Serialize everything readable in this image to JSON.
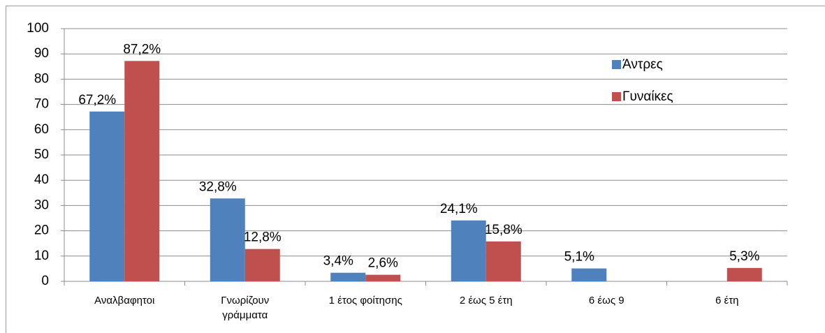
{
  "chart_data": {
    "type": "bar",
    "categories": [
      "Αναλβαφητοι",
      "Γνωρίζουν γράμματα",
      "1 έτος φοίτησης",
      "2 έως 5 έτη",
      "6 έως 9",
      "6 έτη"
    ],
    "series": [
      {
        "name": "Άντρες",
        "color": "#4f81bd",
        "values": [
          67.2,
          32.8,
          3.4,
          24.1,
          5.1,
          null
        ],
        "value_labels": [
          "67,2%",
          "32,8%",
          "3,4%",
          "24,1%",
          "5,1%",
          null
        ]
      },
      {
        "name": "Γυναίκες",
        "color": "#c0504d",
        "values": [
          87.2,
          12.8,
          2.6,
          15.8,
          null,
          5.3
        ],
        "value_labels": [
          "87,2%",
          "12,8%",
          "2,6%",
          "15,8%",
          null,
          "5,3%"
        ]
      }
    ],
    "ylim": [
      0,
      100
    ],
    "yticks": [
      0,
      10,
      20,
      30,
      40,
      50,
      60,
      70,
      80,
      90,
      100
    ],
    "grid": true,
    "legend": "right"
  }
}
